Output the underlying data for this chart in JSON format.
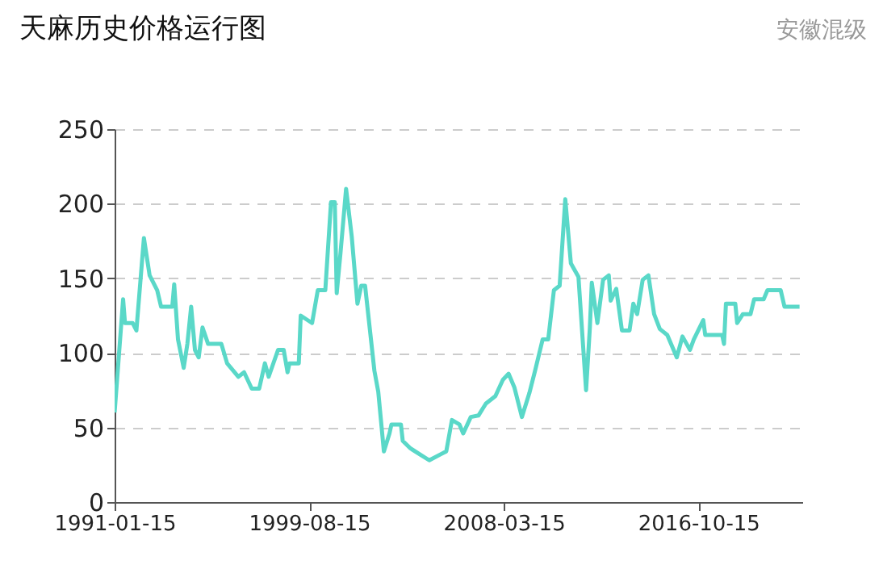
{
  "chart_data": {
    "type": "line",
    "title": "天麻历史价格运行图",
    "subtitle": "安徽混级",
    "x": [
      "1991-01-15",
      "1991-06",
      "1991-07",
      "1991-11",
      "1992-01",
      "1992-05",
      "1992-08",
      "1992-12",
      "1993-02",
      "1993-08",
      "1993-09",
      "1993-11",
      "1994-02",
      "1994-04",
      "1994-06",
      "1994-08",
      "1994-10",
      "1994-12",
      "1995-03",
      "1995-10",
      "1996-01",
      "1996-07",
      "1996-10",
      "1997-02",
      "1997-06",
      "1997-09",
      "1997-11",
      "1998-04",
      "1998-07",
      "1998-09",
      "1998-10",
      "1999-03",
      "1999-04",
      "1999-10",
      "2000-01",
      "2000-05",
      "2000-08",
      "2000-10",
      "2000-11",
      "2001-01",
      "2001-04",
      "2001-07",
      "2001-10",
      "2001-12",
      "2002-02",
      "2002-07",
      "2002-09",
      "2002-12",
      "2003-03",
      "2003-04",
      "2003-09",
      "2003-10",
      "2004-02",
      "2004-07",
      "2004-12",
      "2005-06",
      "2005-09",
      "2005-12",
      "2006-04",
      "2006-06",
      "2006-10",
      "2007-02",
      "2007-06",
      "2007-11",
      "2008-03",
      "2008-06",
      "2008-09",
      "2009-01",
      "2009-05",
      "2009-08",
      "2009-12",
      "2010-03",
      "2010-06",
      "2010-09",
      "2010-12",
      "2011-03",
      "2011-07",
      "2011-11",
      "2012-01",
      "2012-02",
      "2012-05",
      "2012-08",
      "2012-11",
      "2012-12",
      "2013-03",
      "2013-06",
      "2013-10",
      "2013-12",
      "2014-02",
      "2014-05",
      "2014-08",
      "2014-11",
      "2015-02",
      "2015-06",
      "2015-11",
      "2016-02",
      "2016-06",
      "2016-08",
      "2017-01",
      "2017-02",
      "2017-11",
      "2017-12",
      "2018-01",
      "2018-06",
      "2018-07",
      "2018-10",
      "2019-02",
      "2019-04",
      "2019-09",
      "2019-11",
      "2020-06",
      "2020-08",
      "2021-04"
    ],
    "series": [
      {
        "color": "#5ad8c8",
        "values": [
          60,
          136,
          120,
          120,
          115,
          177,
          152,
          142,
          131,
          131,
          146,
          109,
          90,
          106,
          131,
          102,
          97,
          117,
          106,
          106,
          93,
          84,
          87,
          76,
          76,
          93,
          84,
          102,
          102,
          87,
          93,
          93,
          125,
          120,
          142,
          142,
          201,
          201,
          140,
          167,
          210,
          178,
          133,
          145,
          145,
          88,
          74,
          34,
          46,
          52,
          52,
          41,
          36,
          32,
          28,
          32,
          34,
          55,
          52,
          46,
          57,
          58,
          66,
          71,
          82,
          86,
          77,
          57,
          73,
          88,
          109,
          109,
          142,
          145,
          203,
          160,
          151,
          75,
          117,
          147,
          120,
          149,
          152,
          135,
          143,
          115,
          115,
          133,
          126,
          149,
          152,
          126,
          116,
          112,
          97,
          111,
          102,
          109,
          122,
          112,
          112,
          106,
          133,
          133,
          120,
          126,
          126,
          136,
          136,
          142,
          142,
          131,
          131
        ]
      }
    ],
    "xlim": [
      "1991-01-15",
      "2021-05-15"
    ],
    "xticks": [
      "1991-01-15",
      "1999-08-15",
      "2008-03-15",
      "2016-10-15"
    ],
    "ylim": [
      0,
      250
    ],
    "yticks": [
      0,
      50,
      100,
      150,
      200,
      250
    ],
    "grid": "y",
    "line_style": "solid"
  }
}
